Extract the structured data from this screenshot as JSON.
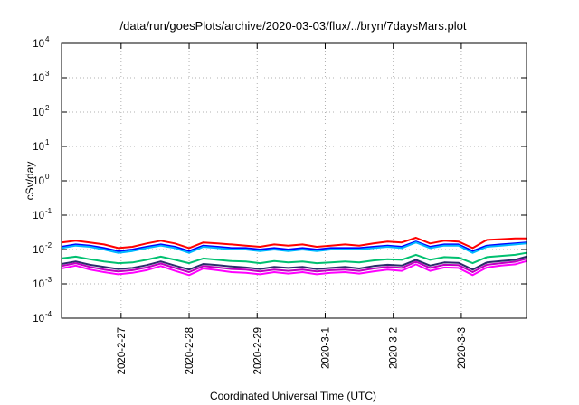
{
  "chart_data": {
    "type": "line",
    "title": "/data/run/goesPlots/archive/2020-03-03/flux/../bryn/7daysMars.plot",
    "xlabel": "Coordinated Universal Time (UTC)",
    "ylabel": "cSv/day",
    "y_scale": "log",
    "ylim": [
      0.0001,
      10000
    ],
    "y_ticks": [
      {
        "base": "10",
        "exp": "-4",
        "value": 0.0001
      },
      {
        "base": "10",
        "exp": "-3",
        "value": 0.001
      },
      {
        "base": "10",
        "exp": "-2",
        "value": 0.01
      },
      {
        "base": "10",
        "exp": "-1",
        "value": 0.1
      },
      {
        "base": "10",
        "exp": "0",
        "value": 1
      },
      {
        "base": "10",
        "exp": "1",
        "value": 10
      },
      {
        "base": "10",
        "exp": "2",
        "value": 100
      },
      {
        "base": "10",
        "exp": "3",
        "value": 1000
      },
      {
        "base": "10",
        "exp": "4",
        "value": 10000
      }
    ],
    "xlim": [
      "2020-02-26T03:00",
      "2020-03-03T23:00"
    ],
    "x_ticks": [
      {
        "label": "2020-2-27",
        "value": "2020-02-27"
      },
      {
        "label": "2020-2-28",
        "value": "2020-02-28"
      },
      {
        "label": "2020-2-29",
        "value": "2020-02-29"
      },
      {
        "label": "2020-3-1",
        "value": "2020-03-01"
      },
      {
        "label": "2020-3-2",
        "value": "2020-03-02"
      },
      {
        "label": "2020-3-3",
        "value": "2020-03-03"
      }
    ],
    "grid": true,
    "legend": "none",
    "x": [
      "2020-02-26T03:00",
      "2020-02-26T08:00",
      "2020-02-26T13:00",
      "2020-02-26T18:00",
      "2020-02-26T23:00",
      "2020-02-27T04:00",
      "2020-02-27T09:00",
      "2020-02-27T14:00",
      "2020-02-27T19:00",
      "2020-02-28T00:00",
      "2020-02-28T05:00",
      "2020-02-28T10:00",
      "2020-02-28T15:00",
      "2020-02-28T20:00",
      "2020-02-29T01:00",
      "2020-02-29T06:00",
      "2020-02-29T11:00",
      "2020-02-29T16:00",
      "2020-02-29T21:00",
      "2020-03-01T02:00",
      "2020-03-01T07:00",
      "2020-03-01T12:00",
      "2020-03-01T17:00",
      "2020-03-01T22:00",
      "2020-03-02T03:00",
      "2020-03-02T08:00",
      "2020-03-02T13:00",
      "2020-03-02T18:00",
      "2020-03-02T23:00",
      "2020-03-03T04:00",
      "2020-03-03T09:00",
      "2020-03-03T14:00",
      "2020-03-03T19:00",
      "2020-03-03T23:00"
    ],
    "series": [
      {
        "color": "#ff0000",
        "values": [
          0.016,
          0.018,
          0.016,
          0.014,
          0.011,
          0.012,
          0.015,
          0.018,
          0.015,
          0.011,
          0.016,
          0.015,
          0.014,
          0.013,
          0.012,
          0.014,
          0.013,
          0.014,
          0.012,
          0.013,
          0.014,
          0.013,
          0.015,
          0.017,
          0.016,
          0.022,
          0.015,
          0.018,
          0.017,
          0.011,
          0.019,
          0.02,
          0.021,
          0.021
        ]
      },
      {
        "color": "#0000ff",
        "values": [
          0.012,
          0.014,
          0.013,
          0.011,
          0.009,
          0.01,
          0.012,
          0.014,
          0.012,
          0.009,
          0.013,
          0.012,
          0.011,
          0.011,
          0.01,
          0.011,
          0.01,
          0.011,
          0.01,
          0.011,
          0.011,
          0.011,
          0.012,
          0.013,
          0.012,
          0.017,
          0.012,
          0.014,
          0.014,
          0.009,
          0.013,
          0.014,
          0.015,
          0.016
        ]
      },
      {
        "color": "#00b7ff",
        "values": [
          0.011,
          0.013,
          0.012,
          0.01,
          0.008,
          0.009,
          0.011,
          0.013,
          0.011,
          0.008,
          0.012,
          0.011,
          0.01,
          0.01,
          0.009,
          0.01,
          0.009,
          0.01,
          0.009,
          0.01,
          0.01,
          0.01,
          0.011,
          0.012,
          0.011,
          0.016,
          0.011,
          0.013,
          0.013,
          0.008,
          0.012,
          0.013,
          0.014,
          0.015
        ]
      },
      {
        "color": "#00c070",
        "values": [
          0.0055,
          0.0062,
          0.0052,
          0.0045,
          0.004,
          0.0042,
          0.005,
          0.0062,
          0.005,
          0.004,
          0.0055,
          0.005,
          0.0046,
          0.0045,
          0.004,
          0.0046,
          0.0042,
          0.0045,
          0.004,
          0.0042,
          0.0045,
          0.0042,
          0.0048,
          0.0052,
          0.005,
          0.007,
          0.005,
          0.006,
          0.0058,
          0.004,
          0.006,
          0.0065,
          0.007,
          0.008
        ]
      },
      {
        "color": "#2b2b6b",
        "values": [
          0.0038,
          0.0045,
          0.0036,
          0.0031,
          0.0027,
          0.0029,
          0.0035,
          0.0045,
          0.0034,
          0.0026,
          0.0038,
          0.0035,
          0.0032,
          0.003,
          0.0027,
          0.0031,
          0.0029,
          0.0031,
          0.0027,
          0.0029,
          0.0031,
          0.0028,
          0.0033,
          0.0036,
          0.0034,
          0.005,
          0.0034,
          0.0042,
          0.0041,
          0.0026,
          0.0042,
          0.0046,
          0.005,
          0.0062
        ]
      },
      {
        "color": "#c000c0",
        "values": [
          0.0033,
          0.004,
          0.0031,
          0.0026,
          0.0023,
          0.0025,
          0.003,
          0.0039,
          0.0029,
          0.0022,
          0.0033,
          0.003,
          0.0027,
          0.0026,
          0.0023,
          0.0026,
          0.0024,
          0.0026,
          0.0023,
          0.0025,
          0.0026,
          0.0024,
          0.0028,
          0.0031,
          0.0029,
          0.0044,
          0.0029,
          0.0036,
          0.0035,
          0.0022,
          0.0036,
          0.004,
          0.0044,
          0.0054
        ]
      },
      {
        "color": "#ff00ff",
        "values": [
          0.0028,
          0.0034,
          0.0026,
          0.0022,
          0.0019,
          0.0021,
          0.0025,
          0.0033,
          0.0024,
          0.0018,
          0.0028,
          0.0025,
          0.0022,
          0.0021,
          0.0019,
          0.0022,
          0.002,
          0.0022,
          0.0019,
          0.0021,
          0.0022,
          0.002,
          0.0023,
          0.0026,
          0.0024,
          0.0037,
          0.0024,
          0.003,
          0.0029,
          0.0018,
          0.003,
          0.0034,
          0.0037,
          0.0046
        ]
      }
    ]
  }
}
